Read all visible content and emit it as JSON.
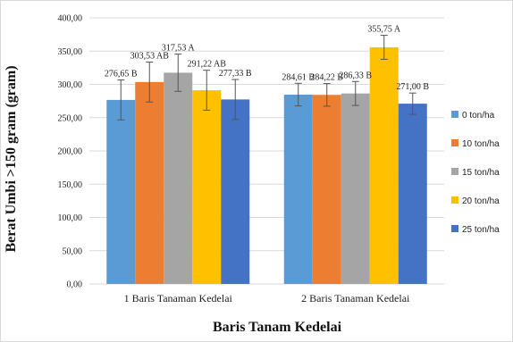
{
  "chart_data": {
    "type": "bar",
    "title": "",
    "xlabel": "Baris Tanam Kedelai",
    "ylabel": "Berat Umbi >150 gram (gram)",
    "categories": [
      "1 Baris Tanaman Kedelai",
      "2 Baris Tanaman Kedelai"
    ],
    "ylim": [
      0,
      400
    ],
    "yticks": [
      0,
      50,
      100,
      150,
      200,
      250,
      300,
      350,
      400
    ],
    "ytick_labels": [
      "0,00",
      "50,00",
      "100,00",
      "150,00",
      "200,00",
      "250,00",
      "300,00",
      "350,00",
      "400,00"
    ],
    "grid": true,
    "legend_position": "right",
    "series": [
      {
        "name": "0 ton/ha",
        "color": "#5B9BD5",
        "values": [
          276.65,
          284.61
        ],
        "errors": [
          30,
          17
        ],
        "labels": [
          "276,65 B",
          "284,61 B"
        ]
      },
      {
        "name": "10 ton/ha",
        "color": "#ED7D31",
        "values": [
          303.53,
          284.22
        ],
        "errors": [
          30,
          17
        ],
        "labels": [
          "303,53 AB",
          "284,22 B"
        ]
      },
      {
        "name": "15 ton/ha",
        "color": "#A5A5A5",
        "values": [
          317.53,
          286.33
        ],
        "errors": [
          28,
          18
        ],
        "labels": [
          "317,53 A",
          "286,33 B"
        ]
      },
      {
        "name": "20 ton/ha",
        "color": "#FFC000",
        "values": [
          291.22,
          355.75
        ],
        "errors": [
          30,
          18
        ],
        "labels": [
          "291,22 AB",
          "355,75 A"
        ]
      },
      {
        "name": "25 ton/ha",
        "color": "#4472C4",
        "values": [
          277.33,
          271.0
        ],
        "errors": [
          30,
          16
        ],
        "labels": [
          "277,33 B",
          "271,00 B"
        ]
      }
    ]
  }
}
